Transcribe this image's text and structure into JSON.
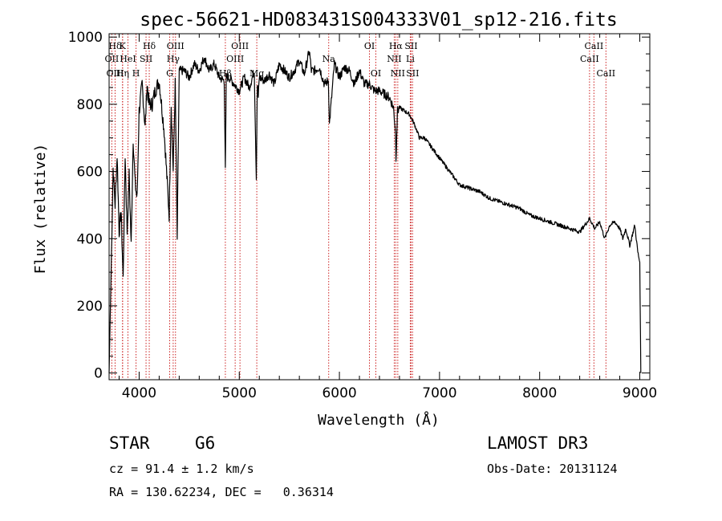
{
  "chart_data": {
    "type": "line",
    "title": "spec-56621-HD083431S004333V01_sp12-216.fits",
    "xlabel": "Wavelength (Å)",
    "ylabel": "Flux (relative)",
    "xlim": [
      3700,
      9100
    ],
    "ylim": [
      -20,
      1010
    ],
    "xticks": [
      4000,
      5000,
      6000,
      7000,
      8000,
      9000
    ],
    "yticks": [
      0,
      200,
      400,
      600,
      800,
      1000
    ],
    "series": [
      {
        "name": "flux",
        "x": [
          3700,
          3720,
          3740,
          3760,
          3780,
          3800,
          3820,
          3840,
          3860,
          3880,
          3900,
          3920,
          3940,
          3960,
          3980,
          4000,
          4030,
          4060,
          4080,
          4100,
          4130,
          4160,
          4200,
          4250,
          4300,
          4320,
          4340,
          4360,
          4380,
          4400,
          4450,
          4500,
          4550,
          4600,
          4650,
          4700,
          4750,
          4800,
          4850,
          4861,
          4870,
          4900,
          4950,
          5000,
          5050,
          5100,
          5150,
          5170,
          5180,
          5190,
          5200,
          5250,
          5300,
          5350,
          5400,
          5450,
          5500,
          5550,
          5600,
          5650,
          5700,
          5720,
          5750,
          5800,
          5850,
          5890,
          5900,
          5950,
          6000,
          6050,
          6100,
          6150,
          6200,
          6250,
          6300,
          6350,
          6400,
          6450,
          6500,
          6540,
          6560,
          6565,
          6580,
          6600,
          6650,
          6700,
          6750,
          6800,
          6850,
          6900,
          6950,
          7000,
          7100,
          7200,
          7300,
          7400,
          7500,
          7600,
          7700,
          7800,
          7900,
          8000,
          8100,
          8200,
          8300,
          8400,
          8500,
          8550,
          8600,
          8650,
          8700,
          8750,
          8800,
          8830,
          8860,
          8900,
          8950,
          8980,
          9000,
          9010
        ],
        "y": [
          0,
          300,
          610,
          500,
          650,
          420,
          480,
          280,
          650,
          420,
          590,
          380,
          700,
          560,
          520,
          780,
          860,
          730,
          860,
          800,
          800,
          840,
          870,
          720,
          470,
          800,
          600,
          860,
          400,
          900,
          900,
          880,
          920,
          900,
          940,
          900,
          920,
          880,
          870,
          600,
          880,
          880,
          860,
          840,
          880,
          850,
          900,
          580,
          860,
          820,
          880,
          870,
          890,
          860,
          920,
          900,
          880,
          900,
          930,
          890,
          960,
          900,
          900,
          910,
          860,
          870,
          740,
          920,
          880,
          910,
          900,
          860,
          900,
          860,
          860,
          840,
          840,
          830,
          820,
          790,
          720,
          640,
          780,
          790,
          780,
          770,
          740,
          700,
          700,
          680,
          660,
          640,
          600,
          560,
          550,
          540,
          520,
          510,
          500,
          490,
          470,
          460,
          450,
          440,
          430,
          420,
          460,
          430,
          450,
          400,
          440,
          450,
          430,
          400,
          430,
          380,
          440,
          360,
          330,
          0
        ]
      }
    ],
    "lines": [
      {
        "label": "Hδ",
        "x": 3760,
        "row": 1
      },
      {
        "label": "OII",
        "x": 3727,
        "row": 2
      },
      {
        "label": "OIII",
        "x": 3760,
        "row": 3
      },
      {
        "label": "K",
        "x": 3834,
        "row": 1
      },
      {
        "label": "HeI",
        "x": 3888,
        "row": 2
      },
      {
        "label": "Hη",
        "x": 3835,
        "row": 3
      },
      {
        "label": "Hδ",
        "x": 4101,
        "row": 1
      },
      {
        "label": "SII",
        "x": 4069,
        "row": 2
      },
      {
        "label": "H",
        "x": 3969,
        "row": 3
      },
      {
        "label": "OIII",
        "x": 4363,
        "row": 1
      },
      {
        "label": "Hγ",
        "x": 4340,
        "row": 2
      },
      {
        "label": "G",
        "x": 4305,
        "row": 3
      },
      {
        "label": "OIII",
        "x": 5007,
        "row": 1
      },
      {
        "label": "OIII",
        "x": 4959,
        "row": 2
      },
      {
        "label": "Hβ",
        "x": 4861,
        "row": 3
      },
      {
        "label": "Mg",
        "x": 5175,
        "row": 3
      },
      {
        "label": "Na",
        "x": 5893,
        "row": 2
      },
      {
        "label": "OI",
        "x": 6300,
        "row": 1
      },
      {
        "label": "OI",
        "x": 6364,
        "row": 3
      },
      {
        "label": "Hα",
        "x": 6563,
        "row": 1
      },
      {
        "label": "SII",
        "x": 6716,
        "row": 1
      },
      {
        "label": "NII",
        "x": 6548,
        "row": 2
      },
      {
        "label": "Li",
        "x": 6708,
        "row": 2
      },
      {
        "label": "NII",
        "x": 6583,
        "row": 3
      },
      {
        "label": "SII",
        "x": 6731,
        "row": 3
      },
      {
        "label": "CaII",
        "x": 8542,
        "row": 1
      },
      {
        "label": "CaII",
        "x": 8498,
        "row": 2
      },
      {
        "label": "CaII",
        "x": 8662,
        "row": 3
      }
    ]
  },
  "info": {
    "object_type": "STAR",
    "subclass": "G6",
    "survey": "LAMOST DR3",
    "cz": "cz = 91.4 ± 1.2 km/s",
    "obs_date": "Obs-Date: 20131124",
    "radec": "RA = 130.62234, DEC =   0.36314"
  },
  "colors": {
    "line_marker": "#cc2222",
    "spectrum": "#000000",
    "axes": "#000000"
  }
}
